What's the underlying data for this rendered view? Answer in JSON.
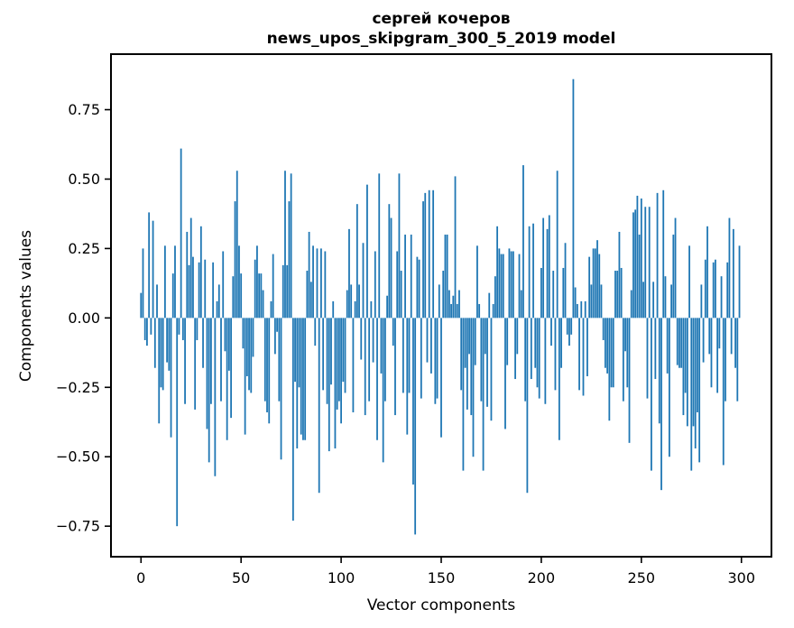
{
  "chart_data": {
    "type": "bar",
    "title": "сергей кочеров",
    "subtitle": "news_upos_skipgram_300_5_2019 model",
    "xlabel": "Vector components",
    "ylabel": "Components values",
    "bar_color": "#1f77b4",
    "frame_color": "#000000",
    "background_color": "#ffffff",
    "grid": false,
    "legend_position": "none",
    "x_start": 0,
    "x_end": 299,
    "xlim": [
      -15,
      315
    ],
    "ylim": [
      -0.86,
      0.95
    ],
    "xticks": {
      "values": [
        0,
        50,
        100,
        150,
        200,
        250,
        300
      ],
      "labels": [
        "0",
        "50",
        "100",
        "150",
        "200",
        "250",
        "300"
      ]
    },
    "yticks": {
      "values": [
        0.75,
        0.5,
        0.25,
        0.0,
        -0.25,
        -0.5,
        -0.75
      ],
      "labels": [
        "0.75",
        "0.50",
        "0.25",
        "0.00",
        "−0.25",
        "−0.50",
        "−0.75"
      ]
    },
    "values": [
      0.09,
      0.25,
      -0.08,
      -0.1,
      0.38,
      -0.06,
      0.35,
      -0.18,
      0.12,
      -0.38,
      -0.25,
      -0.26,
      0.26,
      -0.16,
      -0.19,
      -0.43,
      0.16,
      0.26,
      -0.75,
      -0.06,
      0.61,
      -0.08,
      -0.31,
      0.31,
      0.19,
      0.36,
      0.22,
      -0.33,
      -0.08,
      0.2,
      0.33,
      -0.18,
      0.21,
      -0.4,
      -0.52,
      -0.31,
      0.2,
      -0.57,
      0.06,
      0.12,
      -0.3,
      0.24,
      -0.12,
      -0.44,
      -0.19,
      -0.36,
      0.15,
      0.42,
      0.53,
      0.26,
      0.16,
      -0.11,
      -0.42,
      -0.21,
      -0.26,
      -0.27,
      -0.14,
      0.21,
      0.26,
      0.16,
      0.16,
      0.1,
      -0.3,
      -0.34,
      -0.38,
      0.06,
      0.23,
      -0.13,
      -0.05,
      -0.3,
      -0.51,
      0.19,
      0.53,
      0.19,
      0.42,
      0.52,
      -0.73,
      -0.23,
      -0.47,
      -0.25,
      -0.42,
      -0.44,
      -0.44,
      0.17,
      0.31,
      0.13,
      0.26,
      -0.1,
      0.25,
      -0.63,
      0.25,
      -0.26,
      0.24,
      -0.31,
      -0.48,
      -0.24,
      0.06,
      -0.47,
      -0.33,
      -0.3,
      -0.38,
      -0.23,
      -0.27,
      0.1,
      0.32,
      0.12,
      -0.34,
      0.06,
      0.41,
      0.12,
      -0.15,
      0.27,
      -0.35,
      0.48,
      -0.3,
      0.06,
      -0.16,
      0.24,
      -0.44,
      0.52,
      -0.2,
      -0.52,
      -0.3,
      0.08,
      0.41,
      0.36,
      -0.1,
      -0.35,
      0.24,
      0.52,
      0.17,
      -0.27,
      0.3,
      -0.42,
      -0.27,
      0.3,
      -0.6,
      -0.78,
      0.22,
      0.21,
      -0.29,
      0.42,
      0.45,
      -0.16,
      0.46,
      -0.2,
      0.46,
      -0.31,
      -0.29,
      0.12,
      -0.43,
      0.17,
      0.3,
      0.3,
      0.1,
      0.05,
      0.08,
      0.51,
      0.05,
      0.1,
      -0.26,
      -0.55,
      -0.18,
      -0.33,
      -0.13,
      -0.35,
      -0.5,
      -0.17,
      0.26,
      0.05,
      -0.3,
      -0.55,
      -0.13,
      -0.32,
      0.09,
      -0.37,
      0.05,
      0.15,
      0.33,
      0.25,
      0.23,
      0.23,
      -0.4,
      -0.17,
      0.25,
      0.24,
      0.24,
      -0.22,
      -0.13,
      0.23,
      0.1,
      0.55,
      -0.3,
      -0.63,
      0.33,
      -0.22,
      0.34,
      -0.18,
      -0.25,
      -0.29,
      0.18,
      0.36,
      -0.31,
      0.32,
      0.37,
      -0.1,
      0.17,
      -0.26,
      0.53,
      -0.44,
      -0.18,
      0.18,
      0.27,
      -0.06,
      -0.1,
      -0.06,
      0.86,
      0.11,
      0.05,
      -0.26,
      0.06,
      -0.28,
      0.06,
      -0.21,
      0.22,
      0.12,
      0.25,
      0.25,
      0.28,
      0.23,
      0.12,
      -0.08,
      -0.18,
      -0.2,
      -0.37,
      -0.25,
      -0.25,
      0.17,
      0.17,
      0.31,
      0.18,
      -0.3,
      -0.12,
      -0.25,
      -0.45,
      0.1,
      0.38,
      0.39,
      0.44,
      0.3,
      0.43,
      0.13,
      0.4,
      -0.29,
      0.4,
      -0.55,
      0.13,
      -0.22,
      0.45,
      -0.38,
      -0.62,
      0.46,
      0.15,
      -0.2,
      -0.5,
      0.12,
      0.3,
      0.36,
      -0.17,
      -0.18,
      -0.18,
      -0.35,
      -0.27,
      -0.39,
      0.26,
      -0.55,
      -0.39,
      -0.47,
      -0.34,
      -0.52,
      0.12,
      -0.16,
      0.21,
      0.33,
      -0.13,
      -0.25,
      0.2,
      0.21,
      -0.27,
      -0.11,
      0.15,
      -0.53,
      -0.3,
      0.2,
      0.36,
      -0.13,
      0.32,
      -0.18,
      -0.3,
      0.26
    ]
  }
}
